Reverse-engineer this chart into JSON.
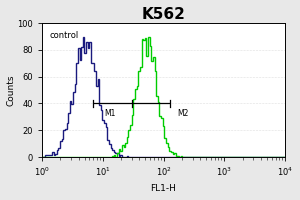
{
  "title": "K562",
  "xlabel": "FL1-H",
  "ylabel": "Counts",
  "control_label": "control",
  "outer_bg_color": "#e8e8e8",
  "plot_bg_color": "#ffffff",
  "blue_color": "#1a1a7e",
  "green_color": "#00cc00",
  "xmin": 1.0,
  "xmax": 10000.0,
  "ymin": 0,
  "ymax": 100,
  "yticks": [
    0,
    20,
    40,
    60,
    80,
    100
  ],
  "blue_peak_log": 0.72,
  "blue_sigma": 0.2,
  "green_peak_log": 1.72,
  "green_sigma": 0.17,
  "n_blue": 4000,
  "n_green": 3000,
  "blue_scale": 1.0,
  "green_scale": 1.0,
  "m1_x": 7.0,
  "m2_x": 130.0,
  "m_line_y": 40,
  "title_fontsize": 11,
  "label_fontsize": 6.5,
  "tick_fontsize": 6,
  "control_fontsize": 6
}
